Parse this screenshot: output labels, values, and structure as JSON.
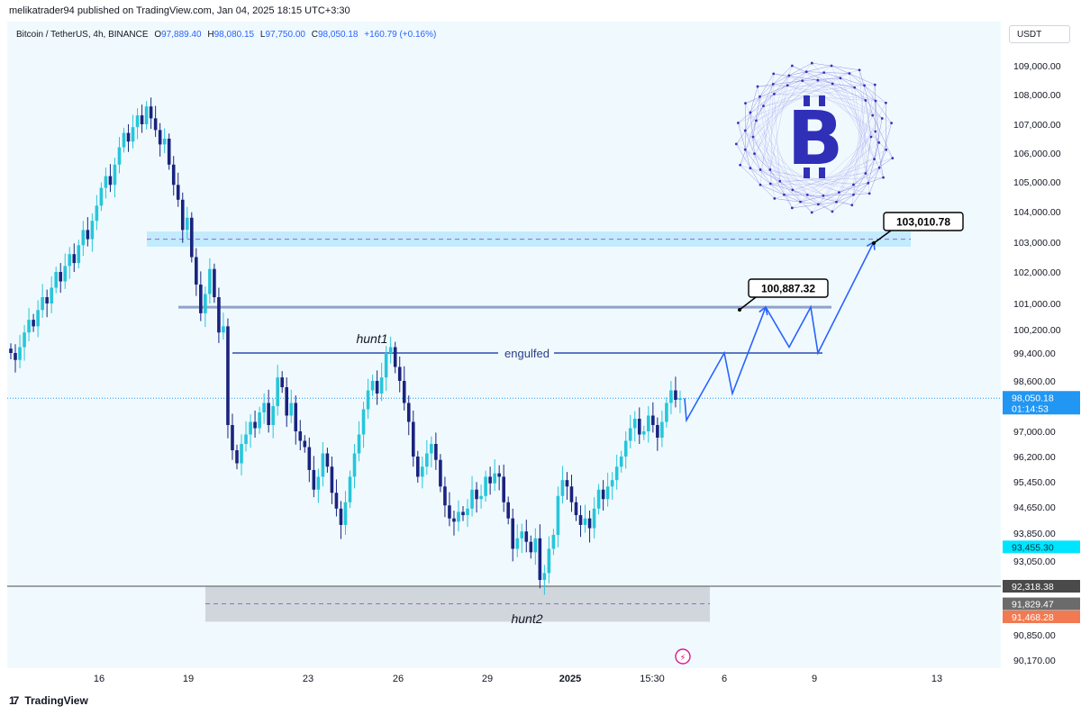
{
  "header": {
    "publish_line": "melikatrader94 published on TradingView.com, Jan 04, 2025 18:15 UTC+3:30"
  },
  "symbol": {
    "name": "Bitcoin / TetherUS, 4h, BINANCE",
    "o_label": "O",
    "o": "97,889.40",
    "h_label": "H",
    "h": "98,080.15",
    "l_label": "L",
    "l": "97,750.00",
    "c_label": "C",
    "c": "98,050.18",
    "change": "+160.79 (+0.16%)"
  },
  "currency": "USDT",
  "footer": {
    "brand": "TradingView"
  },
  "colors": {
    "up": "#26c6da",
    "down": "#1a237e",
    "path": "#2962ff",
    "zone_blue": "#b3e5fc",
    "zone_gray": "#c9cdd4",
    "dash": "#9c64d8",
    "background": "#f0fafe"
  },
  "chart_data": {
    "type": "candlestick",
    "y_axis_ticks": [
      "109,000.00",
      "108,000.00",
      "107,000.00",
      "106,000.00",
      "105,000.00",
      "104,000.00",
      "103,000.00",
      "102,000.00",
      "101,000.00",
      "100,200.00",
      "99,400.00",
      "98,600.00",
      "97,000.00",
      "96,200.00",
      "95,450.00",
      "94,650.00",
      "93,850.00",
      "93,050.00",
      "90,850.00",
      "90,170.00"
    ],
    "x_axis_ticks": [
      "16",
      "19",
      "23",
      "26",
      "29",
      "2025",
      "15:30",
      "6",
      "9",
      "13"
    ],
    "price_badges": [
      {
        "label": "98,050.18",
        "sub": "01:14:53",
        "color": "#2196f3"
      },
      {
        "label": "93,455.30",
        "color": "#00e5ff"
      },
      {
        "label": "92,318.38",
        "color": "#4a4a4a"
      },
      {
        "label": "91,829.47",
        "color": "#6b6b6b"
      },
      {
        "label": "91,468.28",
        "color": "#f27a52"
      }
    ],
    "annotations": {
      "hunt1": "hunt1",
      "hunt2": "hunt2",
      "engulfed": "engulfed",
      "target1": "100,887.32",
      "target2": "103,010.78"
    },
    "series_closes": [
      99400,
      99200,
      99600,
      100100,
      100500,
      100300,
      100800,
      101200,
      101000,
      101500,
      102000,
      101700,
      102200,
      102600,
      102300,
      102900,
      103400,
      103100,
      103700,
      104200,
      104800,
      105200,
      104900,
      105600,
      106200,
      106700,
      106400,
      106900,
      107300,
      107000,
      107600,
      107200,
      106800,
      106300,
      106500,
      105600,
      104900,
      104400,
      103400,
      103800,
      102500,
      101600,
      100700,
      101300,
      102100,
      101200,
      100100,
      100300,
      97200,
      96400,
      96000,
      96600,
      96900,
      97300,
      97100,
      97600,
      97900,
      97200,
      97800,
      98700,
      98400,
      97500,
      97900,
      97000,
      96700,
      96500,
      95800,
      95200,
      95600,
      96300,
      95900,
      95100,
      94600,
      94100,
      94800,
      95600,
      96300,
      96900,
      97700,
      98300,
      98600,
      98200,
      98700,
      99400,
      99600,
      99000,
      98600,
      97900,
      97300,
      96200,
      95600,
      95900,
      96300,
      96600,
      96100,
      95300,
      94700,
      94300,
      94200,
      94500,
      94400,
      94600,
      95200,
      94900,
      95000,
      95600,
      95400,
      95700,
      95600,
      94800,
      94300,
      93400,
      93700,
      93900,
      93600,
      93300,
      93700,
      92500,
      92700,
      93400,
      93800,
      95000,
      95500,
      95300,
      94800,
      94400,
      94100,
      94300,
      94000,
      94600,
      95200,
      94900,
      95300,
      95500,
      95900,
      96200,
      96700,
      97100,
      97400,
      96900,
      97000,
      97500,
      97200,
      96800,
      97300,
      97900,
      98300,
      98000,
      98050
    ],
    "projected_path_prices": [
      98050,
      97350,
      99400,
      98200,
      100887,
      99600,
      100887,
      99400,
      103010
    ]
  }
}
